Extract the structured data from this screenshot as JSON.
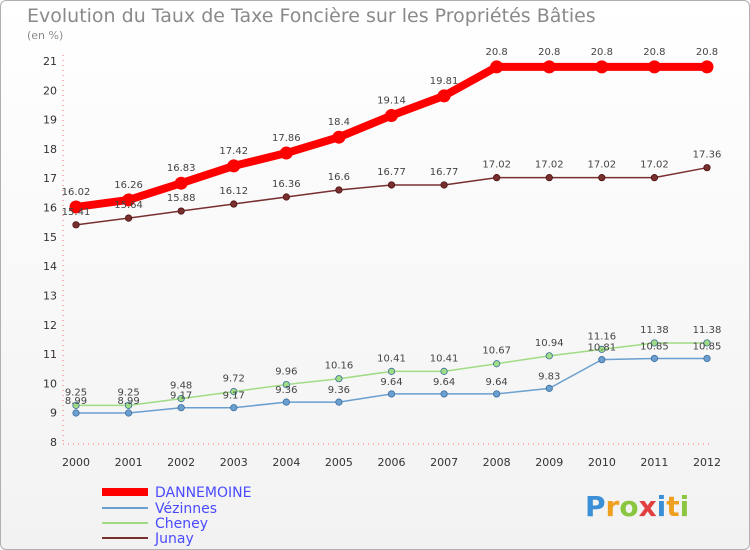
{
  "chart_data": {
    "type": "line",
    "title": "Evolution du Taux de Taxe Foncière sur les Propriétés Bâties",
    "subtitle": "(en %)",
    "categories": [
      "2000",
      "2001",
      "2002",
      "2003",
      "2004",
      "2005",
      "2006",
      "2007",
      "2008",
      "2009",
      "2010",
      "2011",
      "2012"
    ],
    "ylim": [
      8,
      21
    ],
    "yticks": [
      8,
      9,
      10,
      11,
      12,
      13,
      14,
      15,
      16,
      17,
      18,
      19,
      20,
      21
    ],
    "series": [
      {
        "name": "DANNEMOINE",
        "color": "#ff0000",
        "label_color": "#4a4aff",
        "values": [
          16.02,
          16.26,
          16.83,
          17.42,
          17.86,
          18.4,
          19.14,
          19.81,
          20.8,
          20.8,
          20.8,
          20.8,
          20.8
        ],
        "labels": [
          "16.02",
          "16.26",
          "16.83",
          "17.42",
          "17.86",
          "18.4",
          "19.14",
          "19.81",
          "20.8",
          "20.8",
          "20.8",
          "20.8",
          "20.8"
        ]
      },
      {
        "name": "Vézinnes",
        "color": "#6a9fcf",
        "label_color": "#4a4aff",
        "values": [
          8.99,
          8.99,
          9.17,
          9.17,
          9.36,
          9.36,
          9.64,
          9.64,
          9.64,
          9.83,
          10.81,
          10.85,
          10.85
        ],
        "labels": [
          "8.99",
          "8.99",
          "9.17",
          "9.17",
          "9.36",
          "9.36",
          "9.64",
          "9.64",
          "9.64",
          "9.83",
          "10.81",
          "10.85",
          "10.85"
        ]
      },
      {
        "name": "Cheney",
        "color": "#9fdc84",
        "label_color": "#4a4aff",
        "values": [
          9.25,
          9.25,
          9.48,
          9.72,
          9.96,
          10.16,
          10.41,
          10.41,
          10.67,
          10.94,
          11.16,
          11.38,
          11.38
        ],
        "labels": [
          "9.25",
          "9.25",
          "9.48",
          "9.72",
          "9.96",
          "10.16",
          "10.41",
          "10.41",
          "10.67",
          "10.94",
          "11.16",
          "11.38",
          "11.38"
        ]
      },
      {
        "name": "Junay",
        "color": "#7a2f2f",
        "label_color": "#4a4aff",
        "values": [
          15.41,
          15.64,
          15.88,
          16.12,
          16.36,
          16.6,
          16.77,
          16.77,
          17.02,
          17.02,
          17.02,
          17.02,
          17.36
        ],
        "labels": [
          "15.41",
          "15.64",
          "15.88",
          "16.12",
          "16.36",
          "16.6",
          "16.77",
          "16.77",
          "17.02",
          "17.02",
          "17.02",
          "17.02",
          "17.36"
        ]
      }
    ],
    "legend": "bottom-left",
    "grid": false
  },
  "logo": {
    "letters": [
      "P",
      "r",
      "o",
      "x",
      "i",
      "t",
      "i"
    ],
    "colors": [
      "#3a8fd6",
      "#f0a020",
      "#8ac640",
      "#e04040",
      "#3a8fd6",
      "#f0a020",
      "#8ac640"
    ]
  }
}
